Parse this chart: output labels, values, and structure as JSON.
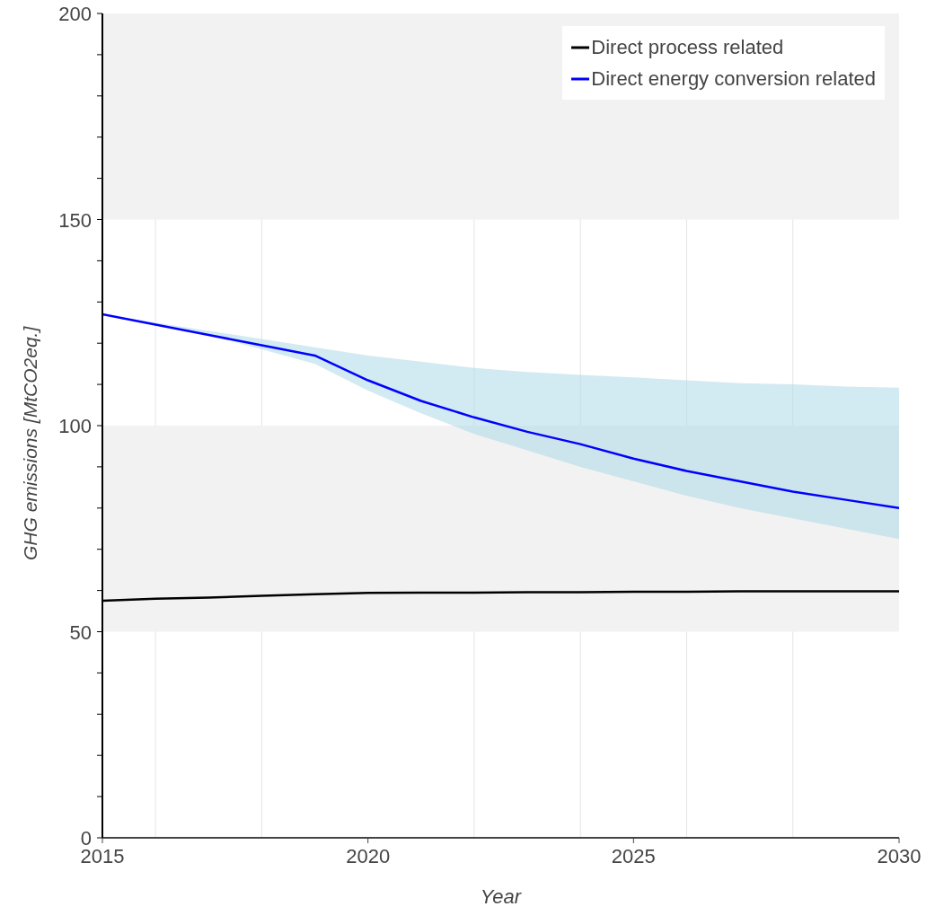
{
  "chart_data": {
    "type": "line",
    "xlabel": "Year",
    "ylabel": "GHG emissions [MtCO2eq.]",
    "x": [
      2015,
      2016,
      2017,
      2018,
      2019,
      2020,
      2021,
      2022,
      2023,
      2024,
      2025,
      2026,
      2027,
      2028,
      2029,
      2030
    ],
    "series": [
      {
        "name": "Direct process related",
        "color": "#000000",
        "values": [
          57.5,
          58,
          58.3,
          58.7,
          59.1,
          59.4,
          59.5,
          59.5,
          59.6,
          59.6,
          59.7,
          59.7,
          59.8,
          59.8,
          59.8,
          59.8
        ]
      },
      {
        "name": "Direct energy conversion related",
        "color": "#0000ff",
        "values": [
          127,
          124.5,
          122,
          119.5,
          117,
          111,
          106,
          102,
          98.5,
          95.5,
          92,
          89,
          86.5,
          84,
          82,
          80
        ],
        "lower": [
          127,
          124.5,
          122,
          118.5,
          115,
          108.5,
          103,
          98,
          94,
          90,
          86.5,
          83,
          80,
          77.5,
          75,
          72.5
        ],
        "upper": [
          127,
          125,
          123,
          121,
          119,
          117,
          115.5,
          114,
          113,
          112.3,
          111.7,
          111,
          110.3,
          110,
          109.5,
          109.2
        ]
      }
    ],
    "xlim": [
      2015,
      2030
    ],
    "xticks": [
      2015,
      {
        "value": 2016,
        "label": null
      },
      {
        "value": 2018,
        "label": null
      },
      2020,
      {
        "value": 2022,
        "label": null
      },
      {
        "value": 2024,
        "label": null
      },
      2025,
      {
        "value": 2026,
        "label": null
      },
      {
        "value": 2028,
        "label": null
      },
      2030
    ],
    "ylim": [
      0,
      200
    ],
    "yticks": [
      0,
      {
        "value": 10,
        "label": null
      },
      {
        "value": 20,
        "label": null
      },
      {
        "value": 30,
        "label": null
      },
      {
        "value": 40,
        "label": null
      },
      50,
      {
        "value": 60,
        "label": null
      },
      {
        "value": 70,
        "label": null
      },
      {
        "value": 80,
        "label": null
      },
      {
        "value": 90,
        "label": null
      },
      100,
      {
        "value": 110,
        "label": null
      },
      {
        "value": 120,
        "label": null
      },
      {
        "value": 130,
        "label": null
      },
      {
        "value": 140,
        "label": null
      },
      150,
      {
        "value": 160,
        "label": null
      },
      {
        "value": 170,
        "label": null
      },
      {
        "value": 180,
        "label": null
      },
      {
        "value": 190,
        "label": null
      },
      200
    ],
    "grid": true,
    "legend": "top right",
    "marker": "none",
    "line_style": "solid"
  }
}
